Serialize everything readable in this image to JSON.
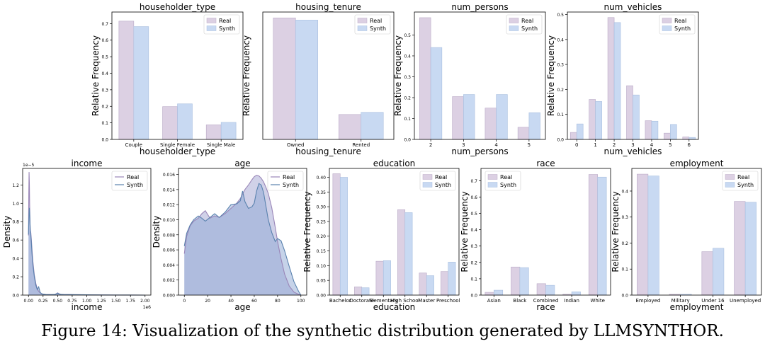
{
  "colors": {
    "real": "#dcd0e3",
    "synth": "#c8d9f2",
    "real_line": "#9a86b8",
    "synth_line": "#5a82ae",
    "kde_fill": "#a9abd6",
    "axis": "#000000"
  },
  "chart_data": [
    {
      "id": "householder_type",
      "type": "bar",
      "title": "householder_type",
      "xlabel": "householder_type",
      "ylabel": "Relative Frequency",
      "categories": [
        "Couple",
        "Single Female",
        "Single Male"
      ],
      "series": [
        {
          "name": "Real",
          "values": [
            0.715,
            0.198,
            0.088
          ]
        },
        {
          "name": "Synth",
          "values": [
            0.682,
            0.215,
            0.103
          ]
        }
      ],
      "ylim": [
        0,
        0.77
      ],
      "yticks": [
        "0.0",
        "0.1",
        "0.2",
        "0.3",
        "0.4",
        "0.5",
        "0.6",
        "0.7"
      ],
      "legend": "upper right"
    },
    {
      "id": "housing_tenure",
      "type": "bar",
      "title": "housing_tenure",
      "xlabel": "housing_tenure",
      "ylabel": "Relative Frequency",
      "categories": [
        "Owned",
        "Rented"
      ],
      "series": [
        {
          "name": "Real",
          "values": [
            0.83,
            0.17
          ]
        },
        {
          "name": "Synth",
          "values": [
            0.815,
            0.185
          ]
        }
      ],
      "ylim": [
        0,
        0.87
      ],
      "yticks": [],
      "legend": "upper right"
    },
    {
      "id": "num_persons",
      "type": "bar",
      "title": "num_persons",
      "xlabel": "num_persons",
      "ylabel": "Relative Frequency",
      "categories": [
        "2",
        "3",
        "4",
        "5"
      ],
      "series": [
        {
          "name": "Real",
          "values": [
            0.583,
            0.205,
            0.15,
            0.058
          ]
        },
        {
          "name": "Synth",
          "values": [
            0.44,
            0.215,
            0.215,
            0.128
          ]
        }
      ],
      "ylim": [
        0,
        0.61
      ],
      "yticks": [
        "0.0",
        "0.1",
        "0.2",
        "0.3",
        "0.4",
        "0.5"
      ],
      "legend": "upper right"
    },
    {
      "id": "num_vehicles",
      "type": "bar",
      "title": "num_vehicles",
      "xlabel": "num_vehicles",
      "ylabel": "Relative Frequency",
      "categories": [
        "0",
        "1",
        "2",
        "3",
        "4",
        "5",
        "6"
      ],
      "series": [
        {
          "name": "Real",
          "values": [
            0.028,
            0.16,
            0.488,
            0.215,
            0.075,
            0.025,
            0.01
          ]
        },
        {
          "name": "Synth",
          "values": [
            0.062,
            0.152,
            0.468,
            0.178,
            0.073,
            0.06,
            0.008
          ]
        }
      ],
      "ylim": [
        0,
        0.51
      ],
      "yticks": [
        "0.0",
        "0.1",
        "0.2",
        "0.3",
        "0.4",
        "0.5"
      ],
      "legend": "upper right"
    },
    {
      "id": "income",
      "type": "area",
      "title": "income",
      "xlabel": "income",
      "ylabel": "Density",
      "x": [
        0,
        5000,
        10000,
        15000,
        20000,
        25000,
        30000,
        40000,
        50000,
        60000,
        75000,
        100000,
        125000,
        150000,
        175000,
        200000,
        225000,
        250000,
        300000,
        350000,
        400000,
        450000,
        480000,
        500000,
        520000,
        550000,
        600000,
        700000,
        800000,
        1000000,
        1250000,
        1500000,
        1750000,
        2000000
      ],
      "series": [
        {
          "name": "Real",
          "values": [
            6.5e-06,
            1.1e-05,
            1.34e-05,
            1.22e-05,
            9.8e-06,
            8.2e-06,
            7.2e-06,
            6.8e-06,
            6e-06,
            5e-06,
            3.7e-06,
            2.2e-06,
            1.3e-06,
            7e-07,
            4e-07,
            2.5e-07,
            1.5e-07,
            1e-07,
            6e-08,
            5e-08,
            5e-08,
            6e-08,
            1.6e-07,
            2.5e-07,
            1.6e-07,
            8e-08,
            6e-08,
            5e-08,
            4e-08,
            3e-08,
            2e-08,
            1e-08,
            5e-09,
            0
          ]
        },
        {
          "name": "Synth",
          "values": [
            6.6e-06,
            8e-06,
            9e-06,
            9.5e-06,
            9e-06,
            8e-06,
            7.2e-06,
            6.5e-06,
            5.6e-06,
            4.5e-06,
            3.3e-06,
            2e-06,
            1.1e-06,
            6e-07,
            9e-07,
            3e-07,
            1.5e-07,
            1e-07,
            6e-08,
            5e-08,
            5e-08,
            6e-08,
            1.4e-07,
            2e-07,
            1.4e-07,
            8e-08,
            6e-08,
            5e-08,
            4e-08,
            3e-08,
            2e-08,
            1e-08,
            5e-09,
            0
          ]
        }
      ],
      "xlim": [
        -100000,
        2100000
      ],
      "ylim": [
        0,
        1.38e-05
      ],
      "xticks": [
        "0.00",
        "0.25",
        "0.50",
        "0.75",
        "1.00",
        "1.25",
        "1.50",
        "1.75",
        "2.00"
      ],
      "yticks": [
        "0.0",
        "0.2",
        "0.4",
        "0.6",
        "0.8",
        "1.0",
        "1.2"
      ],
      "x_offset": "1e6",
      "y_offset": "1e−5",
      "legend": "upper right"
    },
    {
      "id": "age",
      "type": "area",
      "title": "age",
      "xlabel": "age",
      "ylabel": "Density",
      "x": [
        0,
        2,
        5,
        8,
        12,
        15,
        18,
        22,
        26,
        30,
        35,
        40,
        45,
        48,
        50,
        52,
        55,
        58,
        60,
        62,
        64,
        66,
        68,
        70,
        72,
        75,
        78,
        80,
        83,
        86,
        90,
        94,
        98,
        100
      ],
      "series": [
        {
          "name": "Real",
          "values": [
            0.0055,
            0.0078,
            0.0092,
            0.0098,
            0.0102,
            0.0108,
            0.0112,
            0.0102,
            0.0105,
            0.0103,
            0.0108,
            0.0115,
            0.0122,
            0.0128,
            0.0134,
            0.014,
            0.0146,
            0.0153,
            0.0157,
            0.0159,
            0.0158,
            0.0155,
            0.015,
            0.0143,
            0.0135,
            0.0116,
            0.009,
            0.0071,
            0.0048,
            0.0028,
            0.0012,
            0.0004,
            0.0001,
            0.0
          ]
        },
        {
          "name": "Synth",
          "values": [
            0.0065,
            0.0082,
            0.0093,
            0.01,
            0.0105,
            0.0102,
            0.0098,
            0.0103,
            0.0108,
            0.0103,
            0.011,
            0.012,
            0.0121,
            0.0125,
            0.0138,
            0.0124,
            0.0115,
            0.0117,
            0.0122,
            0.0138,
            0.0148,
            0.0146,
            0.0136,
            0.0118,
            0.01,
            0.0083,
            0.0071,
            0.0075,
            0.0072,
            0.0059,
            0.0038,
            0.0018,
            0.0005,
            0.0
          ]
        }
      ],
      "xlim": [
        -5,
        105
      ],
      "ylim": [
        0,
        0.0168
      ],
      "xticks": [
        "0",
        "20",
        "40",
        "60",
        "80",
        "100"
      ],
      "yticks": [
        "0.000",
        "0.002",
        "0.004",
        "0.006",
        "0.008",
        "0.010",
        "0.012",
        "0.014",
        "0.016"
      ],
      "legend": "upper right"
    },
    {
      "id": "education",
      "type": "bar",
      "title": "education",
      "xlabel": "education",
      "ylabel": "Relative Frequency",
      "categories": [
        "Bachelor",
        "Doctorate",
        "Elementary",
        "High School",
        "Master",
        "Preschool"
      ],
      "series": [
        {
          "name": "Real",
          "values": [
            0.412,
            0.028,
            0.115,
            0.29,
            0.075,
            0.08
          ]
        },
        {
          "name": "Synth",
          "values": [
            0.4,
            0.025,
            0.117,
            0.28,
            0.066,
            0.112
          ]
        }
      ],
      "ylim": [
        0,
        0.43
      ],
      "yticks": [
        "0.00",
        "0.05",
        "0.10",
        "0.15",
        "0.20",
        "0.25",
        "0.30",
        "0.35",
        "0.40"
      ],
      "legend": "upper right"
    },
    {
      "id": "race",
      "type": "bar",
      "title": "race",
      "xlabel": "race",
      "ylabel": "Relative Frequency",
      "categories": [
        "Asian",
        "Black",
        "Combined",
        "Indian",
        "White"
      ],
      "series": [
        {
          "name": "Real",
          "values": [
            0.017,
            0.172,
            0.07,
            0.005,
            0.738
          ]
        },
        {
          "name": "Synth",
          "values": [
            0.03,
            0.168,
            0.06,
            0.02,
            0.722
          ]
        }
      ],
      "ylim": [
        0,
        0.775
      ],
      "yticks": [
        "0.0",
        "0.1",
        "0.2",
        "0.3",
        "0.4",
        "0.5",
        "0.6",
        "0.7"
      ],
      "legend": "upper left"
    },
    {
      "id": "employment",
      "type": "bar",
      "title": "employment",
      "xlabel": "employment",
      "ylabel": "Relative Frequency",
      "categories": [
        "Employed",
        "Military",
        "Under 16",
        "Unemployed"
      ],
      "series": [
        {
          "name": "Real",
          "values": [
            0.465,
            0.003,
            0.167,
            0.36
          ]
        },
        {
          "name": "Synth",
          "values": [
            0.458,
            0.003,
            0.18,
            0.357
          ]
        }
      ],
      "ylim": [
        0,
        0.487
      ],
      "yticks": [
        "0.0",
        "0.1",
        "0.2",
        "0.3",
        "0.4"
      ],
      "legend": "upper right"
    }
  ],
  "caption": {
    "prefix": "Figure 14: Visualization of the synthetic distribution generated by ",
    "name_l": "L",
    "name_lm": "LM",
    "name_s": "S",
    "name_ynthor": "YNTHOR",
    "suffix": "."
  }
}
